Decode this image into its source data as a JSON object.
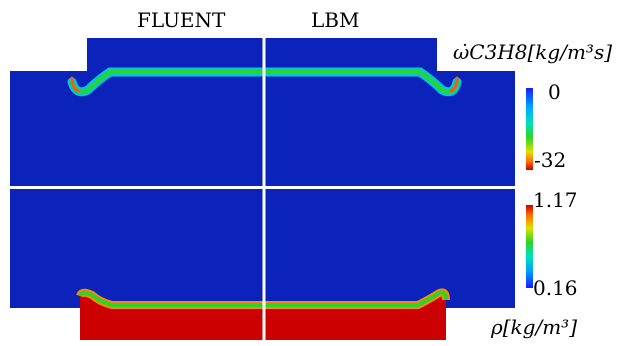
{
  "columns": {
    "left": "FLUENT",
    "right": "LBM"
  },
  "top_field": {
    "quantity": "ω̇C3H8[kg/m³s]",
    "colorbar_max": "0",
    "colorbar_min": "-32"
  },
  "bottom_field": {
    "quantity": "ρ[kg/m³]",
    "colorbar_max": "1.17",
    "colorbar_min": "0.16"
  },
  "colors": {
    "field_background": "#0b22bb",
    "dense_region": "#cc0000",
    "flame_front": "#2ad42a",
    "divider": "#ffffff"
  }
}
